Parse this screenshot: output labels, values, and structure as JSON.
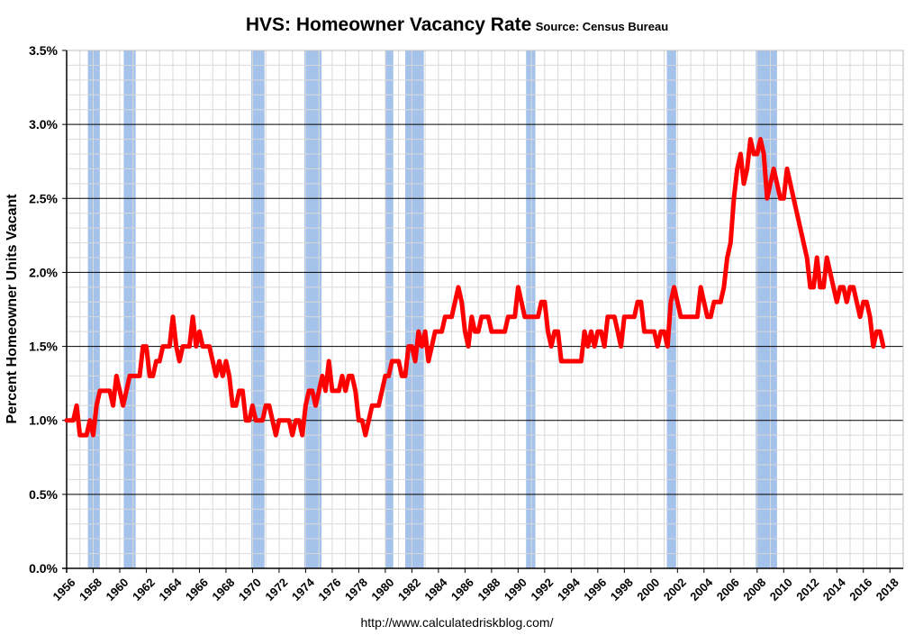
{
  "title": "HVS: Homeowner Vacancy Rate",
  "subtitle": "Source: Census Bureau",
  "source_url": "http://www.calculatedriskblog.com/",
  "colors": {
    "line": "#ff0000",
    "recession": "#a4c2ea",
    "grid_major": "#000000",
    "grid_minor": "#d9d9d9"
  },
  "chart_data": {
    "type": "line",
    "title": "HVS: Homeowner Vacancy Rate",
    "subtitle": "Source: Census Bureau",
    "xlabel": "",
    "ylabel": "Percent Homeowner Units Vacant",
    "xlim": [
      1956,
      2019
    ],
    "ylim": [
      0,
      3.5
    ],
    "y_ticks": [
      0,
      0.5,
      1.0,
      1.5,
      2.0,
      2.5,
      3.0,
      3.5
    ],
    "y_tick_labels": [
      "0.0%",
      "0.5%",
      "1.0%",
      "1.5%",
      "2.0%",
      "2.5%",
      "3.0%",
      "3.5%"
    ],
    "x_ticks": [
      1956,
      1958,
      1960,
      1962,
      1964,
      1966,
      1968,
      1970,
      1972,
      1974,
      1976,
      1978,
      1980,
      1982,
      1984,
      1986,
      1988,
      1990,
      1992,
      1994,
      1996,
      1998,
      2000,
      2002,
      2004,
      2006,
      2008,
      2010,
      2012,
      2014,
      2016,
      2018
    ],
    "x_tick_labels": [
      "1956",
      "1958",
      "1960",
      "1962",
      "1964",
      "1966",
      "1968",
      "1970",
      "1972",
      "1974",
      "1976",
      "1978",
      "1980",
      "1982",
      "1984",
      "1986",
      "1988",
      "1990",
      "1992",
      "1994",
      "1996",
      "1998",
      "2000",
      "2002",
      "2004",
      "2006",
      "2008",
      "2010",
      "2012",
      "2014",
      "2016",
      "2018"
    ],
    "grid": true,
    "recessions": [
      [
        1957.6,
        1958.5
      ],
      [
        1960.3,
        1961.2
      ],
      [
        1969.9,
        1970.9
      ],
      [
        1973.9,
        1975.2
      ],
      [
        1980.0,
        1980.6
      ],
      [
        1981.5,
        1982.9
      ],
      [
        1990.6,
        1991.3
      ],
      [
        2001.2,
        2001.9
      ],
      [
        2007.9,
        2009.5
      ]
    ],
    "series": [
      {
        "values": [
          [
            1956,
            1.0
          ],
          [
            1956.5,
            1.0
          ],
          [
            1956.75,
            1.1
          ],
          [
            1957,
            0.9
          ],
          [
            1957.5,
            0.9
          ],
          [
            1957.75,
            1.0
          ],
          [
            1958,
            0.9
          ],
          [
            1958.25,
            1.1
          ],
          [
            1958.5,
            1.2
          ],
          [
            1959,
            1.2
          ],
          [
            1959.25,
            1.2
          ],
          [
            1959.5,
            1.1
          ],
          [
            1959.75,
            1.3
          ],
          [
            1960,
            1.2
          ],
          [
            1960.25,
            1.1
          ],
          [
            1960.5,
            1.2
          ],
          [
            1960.75,
            1.3
          ],
          [
            1961,
            1.3
          ],
          [
            1961.5,
            1.3
          ],
          [
            1961.75,
            1.5
          ],
          [
            1962,
            1.5
          ],
          [
            1962.25,
            1.3
          ],
          [
            1962.5,
            1.3
          ],
          [
            1962.75,
            1.4
          ],
          [
            1963,
            1.4
          ],
          [
            1963.25,
            1.5
          ],
          [
            1963.5,
            1.5
          ],
          [
            1963.75,
            1.5
          ],
          [
            1964,
            1.7
          ],
          [
            1964.25,
            1.5
          ],
          [
            1964.5,
            1.4
          ],
          [
            1964.75,
            1.5
          ],
          [
            1965,
            1.5
          ],
          [
            1965.25,
            1.5
          ],
          [
            1965.5,
            1.7
          ],
          [
            1965.75,
            1.5
          ],
          [
            1966,
            1.6
          ],
          [
            1966.25,
            1.5
          ],
          [
            1966.5,
            1.5
          ],
          [
            1966.75,
            1.5
          ],
          [
            1967,
            1.4
          ],
          [
            1967.25,
            1.3
          ],
          [
            1967.5,
            1.4
          ],
          [
            1967.75,
            1.3
          ],
          [
            1968,
            1.4
          ],
          [
            1968.25,
            1.3
          ],
          [
            1968.5,
            1.1
          ],
          [
            1968.75,
            1.1
          ],
          [
            1969,
            1.2
          ],
          [
            1969.25,
            1.2
          ],
          [
            1969.5,
            1.0
          ],
          [
            1969.75,
            1.0
          ],
          [
            1970,
            1.1
          ],
          [
            1970.25,
            1.0
          ],
          [
            1970.5,
            1.0
          ],
          [
            1970.75,
            1.0
          ],
          [
            1971,
            1.1
          ],
          [
            1971.25,
            1.1
          ],
          [
            1971.5,
            1.0
          ],
          [
            1971.75,
            0.9
          ],
          [
            1972,
            1.0
          ],
          [
            1972.25,
            1.0
          ],
          [
            1972.5,
            1.0
          ],
          [
            1972.75,
            1.0
          ],
          [
            1973,
            0.9
          ],
          [
            1973.25,
            1.0
          ],
          [
            1973.5,
            1.0
          ],
          [
            1973.75,
            0.9
          ],
          [
            1974,
            1.1
          ],
          [
            1974.25,
            1.2
          ],
          [
            1974.5,
            1.2
          ],
          [
            1974.75,
            1.1
          ],
          [
            1975,
            1.2
          ],
          [
            1975.25,
            1.3
          ],
          [
            1975.5,
            1.2
          ],
          [
            1975.75,
            1.4
          ],
          [
            1976,
            1.2
          ],
          [
            1976.25,
            1.2
          ],
          [
            1976.5,
            1.2
          ],
          [
            1976.75,
            1.3
          ],
          [
            1977,
            1.2
          ],
          [
            1977.25,
            1.3
          ],
          [
            1977.5,
            1.3
          ],
          [
            1977.75,
            1.2
          ],
          [
            1978,
            1.0
          ],
          [
            1978.25,
            1.0
          ],
          [
            1978.5,
            0.9
          ],
          [
            1978.75,
            1.0
          ],
          [
            1979,
            1.1
          ],
          [
            1979.25,
            1.1
          ],
          [
            1979.5,
            1.1
          ],
          [
            1979.75,
            1.2
          ],
          [
            1980,
            1.3
          ],
          [
            1980.25,
            1.3
          ],
          [
            1980.5,
            1.4
          ],
          [
            1980.75,
            1.4
          ],
          [
            1981,
            1.4
          ],
          [
            1981.25,
            1.3
          ],
          [
            1981.5,
            1.3
          ],
          [
            1981.75,
            1.5
          ],
          [
            1982,
            1.5
          ],
          [
            1982.25,
            1.4
          ],
          [
            1982.5,
            1.6
          ],
          [
            1982.75,
            1.5
          ],
          [
            1983,
            1.6
          ],
          [
            1983.25,
            1.4
          ],
          [
            1983.5,
            1.5
          ],
          [
            1983.75,
            1.6
          ],
          [
            1984,
            1.6
          ],
          [
            1984.25,
            1.6
          ],
          [
            1984.5,
            1.7
          ],
          [
            1984.75,
            1.7
          ],
          [
            1985,
            1.7
          ],
          [
            1985.25,
            1.8
          ],
          [
            1985.5,
            1.9
          ],
          [
            1985.75,
            1.8
          ],
          [
            1986,
            1.6
          ],
          [
            1986.25,
            1.5
          ],
          [
            1986.5,
            1.7
          ],
          [
            1986.75,
            1.6
          ],
          [
            1987,
            1.6
          ],
          [
            1987.25,
            1.7
          ],
          [
            1987.5,
            1.7
          ],
          [
            1987.75,
            1.7
          ],
          [
            1988,
            1.6
          ],
          [
            1988.25,
            1.6
          ],
          [
            1988.5,
            1.6
          ],
          [
            1988.75,
            1.6
          ],
          [
            1989,
            1.6
          ],
          [
            1989.25,
            1.7
          ],
          [
            1989.5,
            1.7
          ],
          [
            1989.75,
            1.7
          ],
          [
            1990,
            1.9
          ],
          [
            1990.25,
            1.8
          ],
          [
            1990.5,
            1.7
          ],
          [
            1990.75,
            1.7
          ],
          [
            1991,
            1.7
          ],
          [
            1991.25,
            1.7
          ],
          [
            1991.5,
            1.7
          ],
          [
            1991.75,
            1.8
          ],
          [
            1992,
            1.8
          ],
          [
            1992.25,
            1.6
          ],
          [
            1992.5,
            1.5
          ],
          [
            1992.75,
            1.6
          ],
          [
            1993,
            1.6
          ],
          [
            1993.25,
            1.4
          ],
          [
            1993.5,
            1.4
          ],
          [
            1993.75,
            1.4
          ],
          [
            1994,
            1.4
          ],
          [
            1994.25,
            1.4
          ],
          [
            1994.5,
            1.4
          ],
          [
            1994.75,
            1.4
          ],
          [
            1995,
            1.6
          ],
          [
            1995.25,
            1.5
          ],
          [
            1995.5,
            1.6
          ],
          [
            1995.75,
            1.5
          ],
          [
            1996,
            1.6
          ],
          [
            1996.25,
            1.6
          ],
          [
            1996.5,
            1.5
          ],
          [
            1996.75,
            1.7
          ],
          [
            1997,
            1.7
          ],
          [
            1997.25,
            1.7
          ],
          [
            1997.5,
            1.6
          ],
          [
            1997.75,
            1.5
          ],
          [
            1998,
            1.7
          ],
          [
            1998.25,
            1.7
          ],
          [
            1998.5,
            1.7
          ],
          [
            1998.75,
            1.7
          ],
          [
            1999,
            1.8
          ],
          [
            1999.25,
            1.8
          ],
          [
            1999.5,
            1.6
          ],
          [
            1999.75,
            1.6
          ],
          [
            2000,
            1.6
          ],
          [
            2000.25,
            1.6
          ],
          [
            2000.5,
            1.5
          ],
          [
            2000.75,
            1.6
          ],
          [
            2001,
            1.6
          ],
          [
            2001.25,
            1.5
          ],
          [
            2001.5,
            1.8
          ],
          [
            2001.75,
            1.9
          ],
          [
            2002,
            1.8
          ],
          [
            2002.25,
            1.7
          ],
          [
            2002.5,
            1.7
          ],
          [
            2002.75,
            1.7
          ],
          [
            2003,
            1.7
          ],
          [
            2003.25,
            1.7
          ],
          [
            2003.5,
            1.7
          ],
          [
            2003.75,
            1.9
          ],
          [
            2004,
            1.8
          ],
          [
            2004.25,
            1.7
          ],
          [
            2004.5,
            1.7
          ],
          [
            2004.75,
            1.8
          ],
          [
            2005,
            1.8
          ],
          [
            2005.25,
            1.8
          ],
          [
            2005.5,
            1.9
          ],
          [
            2005.75,
            2.1
          ],
          [
            2006,
            2.2
          ],
          [
            2006.25,
            2.5
          ],
          [
            2006.5,
            2.7
          ],
          [
            2006.75,
            2.8
          ],
          [
            2007,
            2.6
          ],
          [
            2007.25,
            2.7
          ],
          [
            2007.5,
            2.9
          ],
          [
            2007.75,
            2.8
          ],
          [
            2008,
            2.8
          ],
          [
            2008.25,
            2.9
          ],
          [
            2008.5,
            2.8
          ],
          [
            2008.75,
            2.5
          ],
          [
            2009,
            2.6
          ],
          [
            2009.25,
            2.7
          ],
          [
            2009.5,
            2.6
          ],
          [
            2009.75,
            2.5
          ],
          [
            2010,
            2.5
          ],
          [
            2010.25,
            2.7
          ],
          [
            2010.5,
            2.6
          ],
          [
            2010.75,
            2.5
          ],
          [
            2011,
            2.4
          ],
          [
            2011.25,
            2.3
          ],
          [
            2011.5,
            2.2
          ],
          [
            2011.75,
            2.1
          ],
          [
            2012,
            1.9
          ],
          [
            2012.25,
            1.9
          ],
          [
            2012.5,
            2.1
          ],
          [
            2012.75,
            1.9
          ],
          [
            2013,
            1.9
          ],
          [
            2013.25,
            2.1
          ],
          [
            2013.5,
            2.0
          ],
          [
            2013.75,
            1.9
          ],
          [
            2014,
            1.8
          ],
          [
            2014.25,
            1.9
          ],
          [
            2014.5,
            1.9
          ],
          [
            2014.75,
            1.8
          ],
          [
            2015,
            1.9
          ],
          [
            2015.25,
            1.9
          ],
          [
            2015.5,
            1.8
          ],
          [
            2015.75,
            1.7
          ],
          [
            2016,
            1.8
          ],
          [
            2016.25,
            1.8
          ],
          [
            2016.5,
            1.7
          ],
          [
            2016.75,
            1.5
          ],
          [
            2017,
            1.6
          ],
          [
            2017.25,
            1.6
          ],
          [
            2017.5,
            1.5
          ]
        ]
      }
    ]
  }
}
